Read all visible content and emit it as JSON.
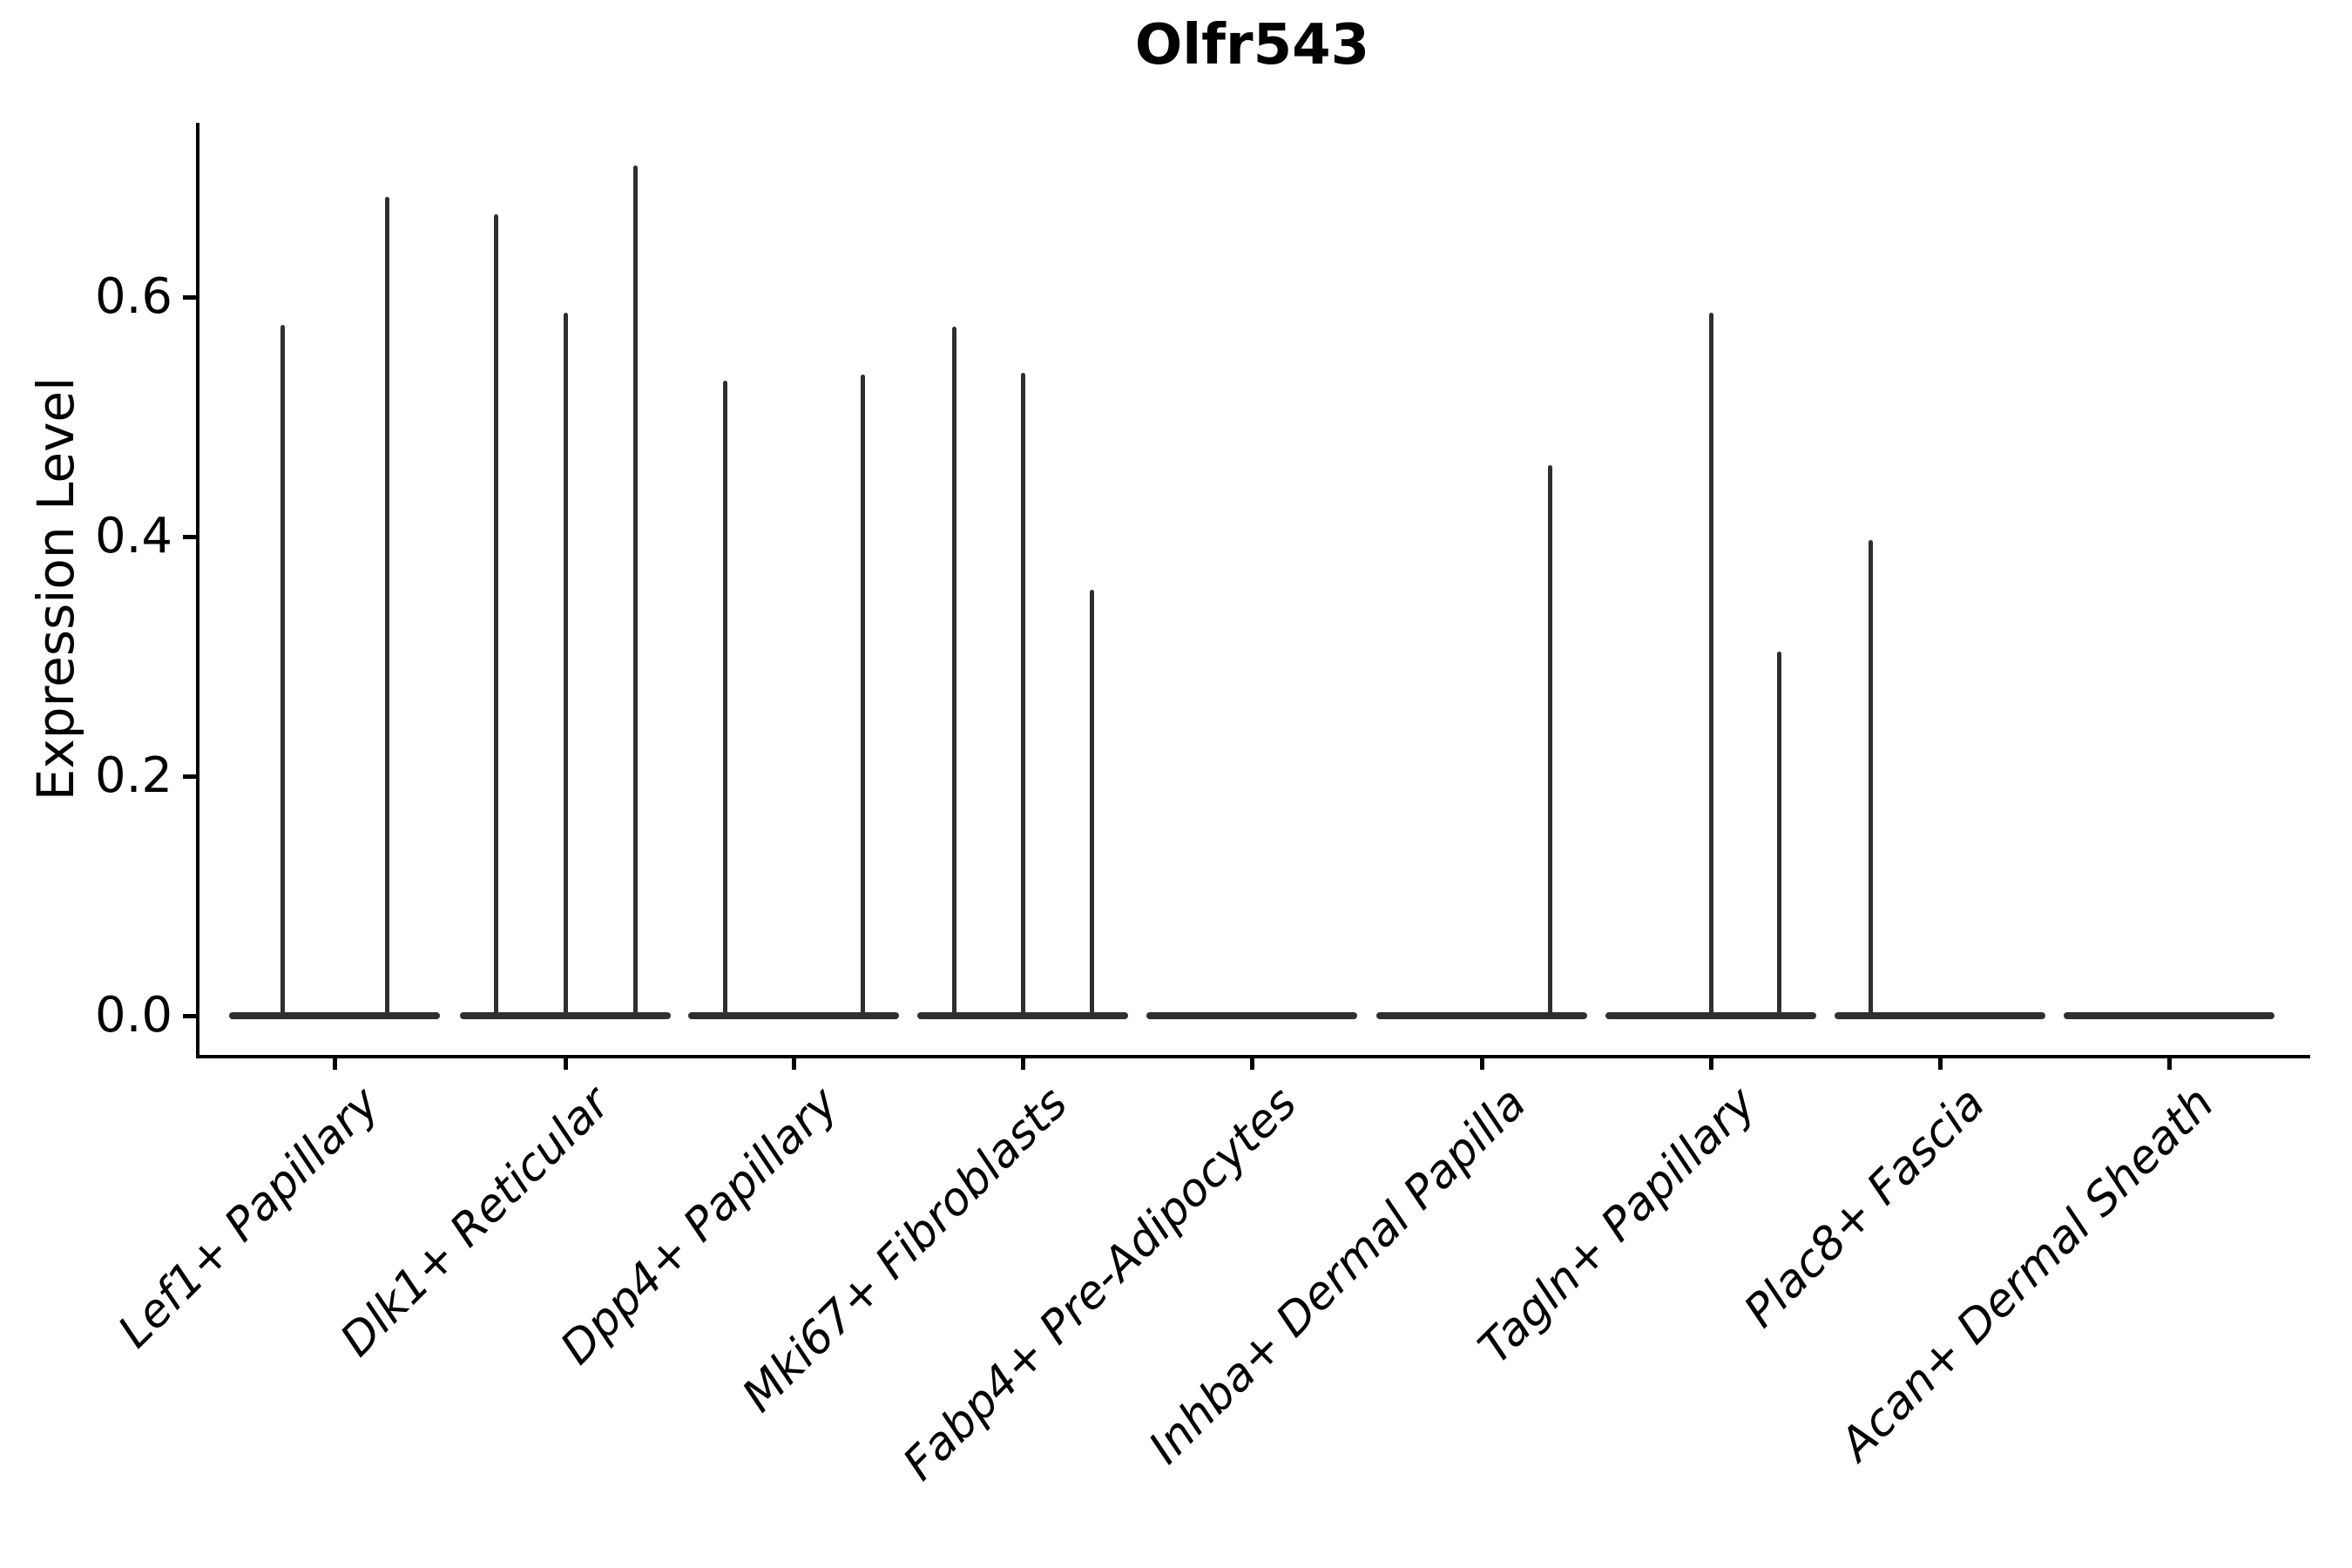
{
  "chart_data": {
    "type": "violin",
    "title": "Olfr543",
    "xlabel": "",
    "ylabel": "Expression Level",
    "categories": [
      "Lef1+ Papillary",
      "Dlk1+ Reticular",
      "Dpp4+ Papillary",
      "Mki67+ Fibroblasts",
      "Fabp4+ Pre-Adipocytes",
      "Inhba+ Dermal Papilla",
      "Tagln+ Papillary",
      "Plac8+ Fascia",
      "Acan+ Dermal Sheath"
    ],
    "y_ticks": [
      0.0,
      0.2,
      0.4,
      0.6
    ],
    "y_tick_labels": [
      "0.0",
      "0.2",
      "0.4",
      "0.6"
    ],
    "ylim": [
      -0.036,
      0.746
    ],
    "grid": false,
    "legend": false,
    "baseline_value": 0.0,
    "violins": [
      {
        "category": "Lef1+ Papillary",
        "spikes": [
          {
            "offset": -60,
            "max": 0.577
          },
          {
            "offset": 60,
            "max": 0.684
          }
        ]
      },
      {
        "category": "Dlk1+ Reticular",
        "spikes": [
          {
            "offset": -80,
            "max": 0.669
          },
          {
            "offset": 0,
            "max": 0.587
          },
          {
            "offset": 80,
            "max": 0.71
          }
        ]
      },
      {
        "category": "Dpp4+ Papillary",
        "spikes": [
          {
            "offset": -79,
            "max": 0.53
          },
          {
            "offset": 79,
            "max": 0.535
          }
        ]
      },
      {
        "category": "Mki67+ Fibroblasts",
        "spikes": [
          {
            "offset": -79,
            "max": 0.575
          },
          {
            "offset": 0,
            "max": 0.537
          },
          {
            "offset": 79,
            "max": 0.356
          }
        ]
      },
      {
        "category": "Fabp4+ Pre-Adipocytes",
        "spikes": []
      },
      {
        "category": "Inhba+ Dermal Papilla",
        "spikes": [
          {
            "offset": 78,
            "max": 0.46
          }
        ]
      },
      {
        "category": "Tagln+ Papillary",
        "spikes": [
          {
            "offset": 0,
            "max": 0.587
          },
          {
            "offset": 78,
            "max": 0.304
          }
        ]
      },
      {
        "category": "Plac8+ Fascia",
        "spikes": [
          {
            "offset": -80,
            "max": 0.397
          }
        ]
      },
      {
        "category": "Acan+ Dermal Sheath",
        "spikes": []
      }
    ],
    "colors": {
      "violin": "#2f2f2f",
      "axis": "#000000",
      "text": "#000000",
      "background": "#ffffff"
    }
  }
}
